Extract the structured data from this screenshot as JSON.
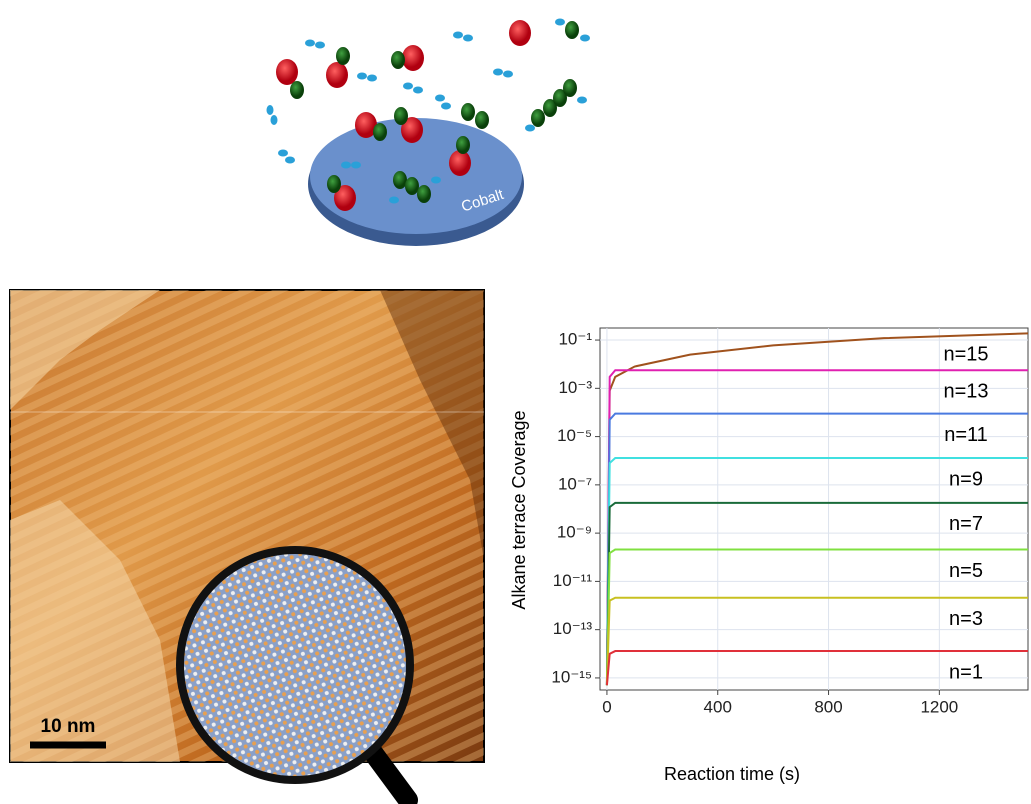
{
  "illustration": {
    "surface_label": "Cobalt"
  },
  "image": {
    "scale_bar": "10 nm"
  },
  "chart_data": {
    "type": "line",
    "xlabel": "Reaction time (s)",
    "ylabel": "Alkane terrace Coverage",
    "log_y": true,
    "grid": true,
    "xlim": [
      -25,
      1520
    ],
    "xticks": [
      0,
      400,
      800,
      1200
    ],
    "ylim": [
      3.16e-16,
      0.316
    ],
    "yticks": [
      {
        "value": 0.1,
        "label": "10⁻¹"
      },
      {
        "value": 0.001,
        "label": "10⁻³"
      },
      {
        "value": 1e-05,
        "label": "10⁻⁵"
      },
      {
        "value": 1e-07,
        "label": "10⁻⁷"
      },
      {
        "value": 1e-09,
        "label": "10⁻⁹"
      },
      {
        "value": 1e-11,
        "label": "10⁻¹¹"
      },
      {
        "value": 1e-13,
        "label": "10⁻¹³"
      },
      {
        "value": 1e-15,
        "label": "10⁻¹⁵"
      }
    ],
    "x": [
      0,
      10,
      30,
      100,
      300,
      600,
      1000,
      1520
    ],
    "series": [
      {
        "name": "n=15",
        "color": "#a0521d",
        "values": [
          5e-16,
          0.0008,
          0.003,
          0.008,
          0.025,
          0.06,
          0.12,
          0.19
        ]
      },
      {
        "name": "n=13",
        "color": "#e020b0",
        "values": [
          5e-16,
          0.003,
          0.0056,
          0.0056,
          0.0056,
          0.0056,
          0.0056,
          0.0056
        ]
      },
      {
        "name": "n=11",
        "color": "#4a7ae0",
        "values": [
          5e-16,
          5e-05,
          9e-05,
          9e-05,
          9e-05,
          9e-05,
          9e-05,
          9e-05
        ]
      },
      {
        "name": "n=9",
        "color": "#40e0e0",
        "values": [
          5e-16,
          8e-07,
          1.3e-06,
          1.3e-06,
          1.3e-06,
          1.3e-06,
          1.3e-06,
          1.3e-06
        ]
      },
      {
        "name": "n=7",
        "color": "#1a6b3a",
        "values": [
          5e-16,
          1.2e-08,
          1.8e-08,
          1.8e-08,
          1.8e-08,
          1.8e-08,
          1.8e-08,
          1.8e-08
        ]
      },
      {
        "name": "n=5",
        "color": "#80e040",
        "values": [
          5e-16,
          1.5e-10,
          2.1e-10,
          2.1e-10,
          2.1e-10,
          2.1e-10,
          2.1e-10,
          2.1e-10
        ]
      },
      {
        "name": "n=3",
        "color": "#c8c020",
        "values": [
          5e-16,
          1.6e-12,
          2.1e-12,
          2.1e-12,
          2.1e-12,
          2.1e-12,
          2.1e-12,
          2.1e-12
        ]
      },
      {
        "name": "n=1",
        "color": "#e0303a",
        "values": [
          5e-16,
          1e-14,
          1.3e-14,
          1.3e-14,
          1.3e-14,
          1.3e-14,
          1.3e-14,
          1.3e-14
        ]
      }
    ]
  }
}
